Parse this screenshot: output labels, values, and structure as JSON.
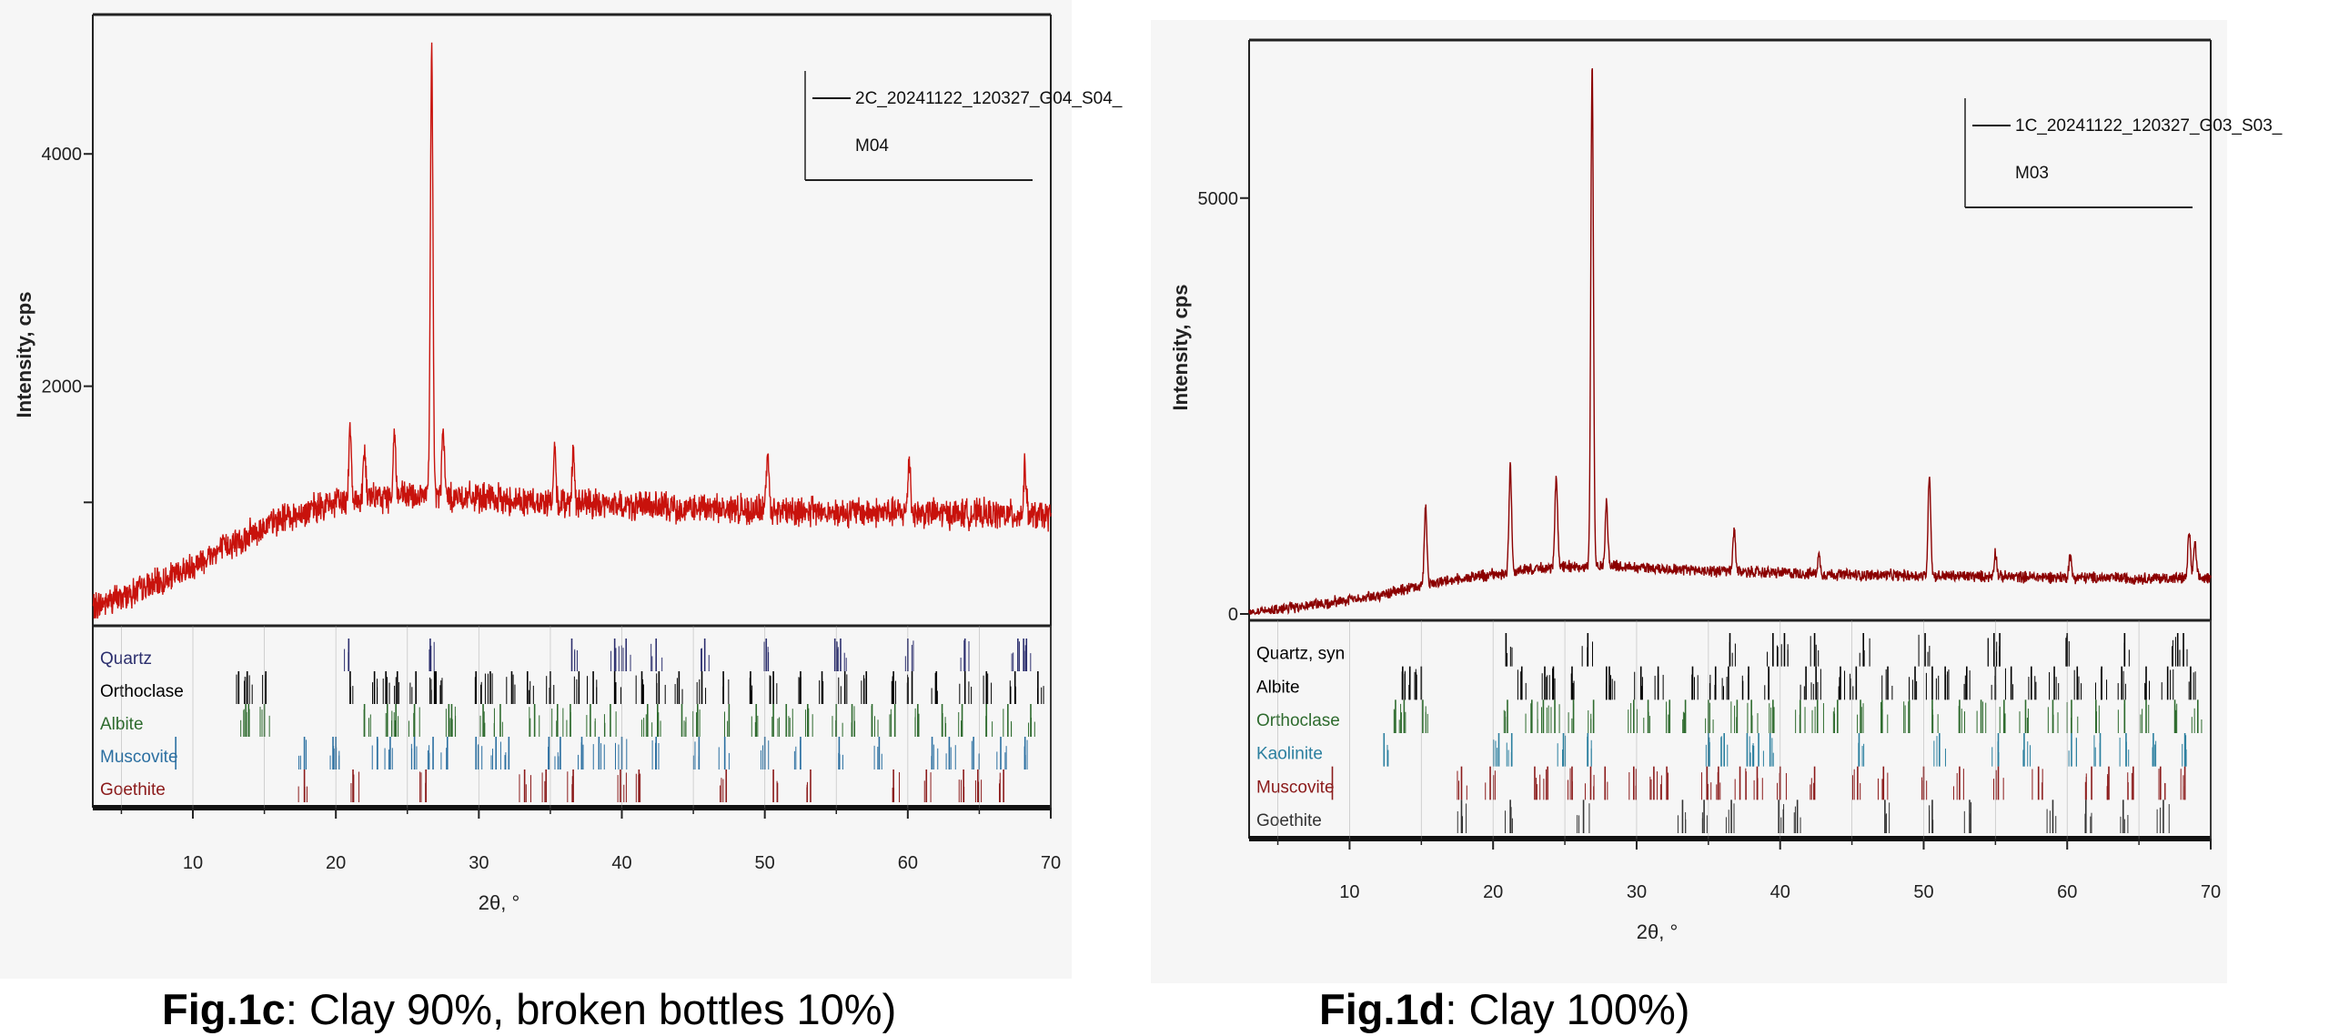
{
  "chart_data": [
    {
      "type": "line",
      "id": "c",
      "xlabel": "2θ, °",
      "ylabel": "Intensity, cps",
      "xlim": [
        3,
        70
      ],
      "ylim": [
        0,
        5200
      ],
      "xticks": [
        10,
        20,
        30,
        40,
        50,
        60,
        70
      ],
      "yticks": [
        {
          "v": 4000,
          "label": "4000"
        },
        {
          "v": 2000,
          "label": "2000"
        },
        {
          "v": 1000,
          "label": ""
        }
      ],
      "legend": {
        "position": "top-right",
        "lines": [
          "2C_20241122_120327_G04_S04_",
          "M04"
        ]
      },
      "series_color": "#c8120c",
      "baseline": [
        [
          3,
          100
        ],
        [
          8,
          320
        ],
        [
          12,
          600
        ],
        [
          16,
          850
        ],
        [
          20,
          1000
        ],
        [
          24,
          1050
        ],
        [
          28,
          1050
        ],
        [
          35,
          1000
        ],
        [
          45,
          950
        ],
        [
          55,
          920
        ],
        [
          65,
          900
        ],
        [
          70,
          880
        ]
      ],
      "noise": 110,
      "peaks": [
        [
          21.0,
          1680
        ],
        [
          22.0,
          1450
        ],
        [
          24.1,
          1600
        ],
        [
          26.7,
          4900
        ],
        [
          27.5,
          1600
        ],
        [
          35.3,
          1400
        ],
        [
          36.6,
          1450
        ],
        [
          50.2,
          1450
        ],
        [
          60.1,
          1400
        ],
        [
          68.2,
          1300
        ]
      ],
      "phases": [
        {
          "name": "Quartz",
          "color": "#2c2f6e",
          "positions": [
            20.9,
            26.6,
            36.5,
            39.5,
            40.3,
            42.4,
            45.8,
            50.1,
            54.9,
            55.3,
            60.0,
            64.0,
            67.7,
            68.1,
            68.3
          ]
        },
        {
          "name": "Orthoclase",
          "color": "#000000",
          "positions": [
            13.2,
            13.8,
            15.1,
            21.0,
            22.7,
            23.5,
            24.3,
            25.6,
            26.9,
            27.0,
            29.8,
            30.8,
            32.3,
            33.4,
            35.0,
            37.0,
            38.0,
            39.5,
            41.4,
            42.6,
            44.0,
            45.6,
            47.1,
            49.0,
            50.6,
            52.5,
            54.0,
            55.6,
            57.1,
            59.0,
            60.3,
            62.0,
            64.0,
            65.5,
            67.5,
            69.1
          ]
        },
        {
          "name": "Albite",
          "color": "#2e6b2e",
          "positions": [
            13.7,
            13.9,
            15.0,
            22.0,
            23.6,
            24.2,
            25.5,
            27.9,
            28.1,
            30.3,
            31.5,
            33.9,
            35.5,
            36.4,
            37.8,
            39.2,
            41.8,
            42.5,
            44.2,
            45.3,
            47.5,
            49.4,
            50.6,
            51.5,
            53.0,
            55.0,
            56.1,
            57.5,
            59.1,
            60.7,
            62.4,
            63.8,
            65.5,
            67.0,
            68.6
          ]
        },
        {
          "name": "Muscovite",
          "color": "#2b6fa1",
          "positions": [
            8.8,
            17.8,
            19.8,
            20.0,
            22.9,
            23.8,
            25.5,
            26.8,
            27.8,
            29.8,
            31.2,
            32.1,
            34.9,
            35.7,
            37.2,
            38.4,
            40.0,
            42.4,
            45.4,
            47.2,
            50.0,
            52.5,
            55.2,
            58.0,
            61.7,
            62.9,
            64.6,
            66.5,
            68.2
          ]
        },
        {
          "name": "Goethite",
          "color": "#8b1a1a",
          "positions": [
            17.8,
            21.2,
            26.3,
            33.2,
            34.7,
            36.6,
            39.9,
            41.2,
            47.3,
            50.6,
            53.2,
            59.0,
            61.3,
            63.9,
            64.9,
            66.7
          ]
        }
      ],
      "caption": {
        "bold": "Fig.1c",
        "rest": ": Clay 90%, broken bottles 10%)"
      }
    },
    {
      "type": "line",
      "id": "d",
      "xlabel": "2θ, °",
      "ylabel": "Intensity, cps",
      "xlim": [
        3,
        70
      ],
      "ylim": [
        0,
        6900
      ],
      "xticks": [
        10,
        20,
        30,
        40,
        50,
        60,
        70
      ],
      "yticks": [
        {
          "v": 5000,
          "label": "5000"
        },
        {
          "v": 0,
          "label": "0"
        }
      ],
      "legend": {
        "position": "top-right",
        "lines": [
          "1C_20241122_120327_G03_S03_",
          "M03"
        ]
      },
      "series_color": "#8b0000",
      "baseline": [
        [
          3,
          20
        ],
        [
          8,
          120
        ],
        [
          12,
          220
        ],
        [
          16,
          380
        ],
        [
          20,
          480
        ],
        [
          24,
          560
        ],
        [
          28,
          580
        ],
        [
          35,
          520
        ],
        [
          45,
          470
        ],
        [
          55,
          450
        ],
        [
          65,
          430
        ],
        [
          70,
          430
        ]
      ],
      "noise": 60,
      "peaks": [
        [
          15.3,
          1300
        ],
        [
          21.2,
          1800
        ],
        [
          24.4,
          1650
        ],
        [
          26.9,
          6600
        ],
        [
          27.9,
          1350
        ],
        [
          36.8,
          1000
        ],
        [
          42.7,
          700
        ],
        [
          50.4,
          1700
        ],
        [
          55.0,
          750
        ],
        [
          60.2,
          700
        ],
        [
          68.5,
          1000
        ],
        [
          68.9,
          850
        ]
      ],
      "phases": [
        {
          "name": "Quartz, syn",
          "color": "#000000",
          "positions": [
            20.9,
            26.6,
            36.5,
            39.5,
            40.3,
            42.4,
            45.8,
            50.1,
            54.9,
            55.3,
            60.0,
            64.0,
            67.7,
            68.1
          ]
        },
        {
          "name": "Albite",
          "color": "#000000",
          "positions": [
            13.7,
            14.2,
            15.0,
            22.0,
            23.6,
            24.2,
            25.5,
            27.9,
            28.1,
            30.3,
            31.5,
            33.9,
            35.5,
            36.4,
            37.8,
            39.2,
            41.8,
            42.5,
            44.2,
            45.3,
            47.5,
            49.4,
            50.6,
            51.5,
            53.0,
            55.0,
            56.1,
            57.5,
            59.1,
            60.7,
            62.4,
            63.8,
            65.5,
            67.0,
            68.6
          ]
        },
        {
          "name": "Orthoclase",
          "color": "#2e6b2e",
          "positions": [
            13.2,
            13.8,
            15.1,
            21.0,
            22.7,
            23.5,
            24.3,
            25.6,
            27.0,
            29.8,
            30.8,
            32.3,
            33.4,
            35.0,
            37.0,
            38.0,
            39.5,
            41.4,
            42.6,
            44.0,
            45.6,
            47.1,
            49.0,
            50.6,
            52.5,
            54.0,
            55.6,
            57.1,
            59.0,
            60.3,
            62.0,
            64.0,
            65.5,
            67.5,
            69.1
          ]
        },
        {
          "name": "Kaolinite",
          "color": "#2b7f9f",
          "positions": [
            12.4,
            20.4,
            21.3,
            24.9,
            26.6,
            35.0,
            36.1,
            37.7,
            38.5,
            39.3,
            45.5,
            51.1,
            55.2,
            57.0,
            60.3,
            62.3,
            64.1,
            66.0,
            68.2
          ]
        },
        {
          "name": "Muscovite",
          "color": "#8b1a1a",
          "positions": [
            8.8,
            17.8,
            19.8,
            22.9,
            23.8,
            25.5,
            26.8,
            27.8,
            29.8,
            31.2,
            32.1,
            34.9,
            35.7,
            37.2,
            38.4,
            40.0,
            42.4,
            45.4,
            47.2,
            50.0,
            52.5,
            55.2,
            58.0,
            61.7,
            62.9,
            64.6,
            66.5,
            68.2
          ]
        },
        {
          "name": "Goethite",
          "color": "#333333",
          "positions": [
            17.8,
            21.2,
            26.3,
            33.2,
            34.7,
            36.6,
            39.9,
            41.2,
            47.3,
            50.6,
            53.2,
            59.0,
            61.3,
            63.9,
            66.7
          ]
        }
      ],
      "caption": {
        "bold": "Fig.1d",
        "rest": ": Clay 100%)"
      }
    }
  ]
}
